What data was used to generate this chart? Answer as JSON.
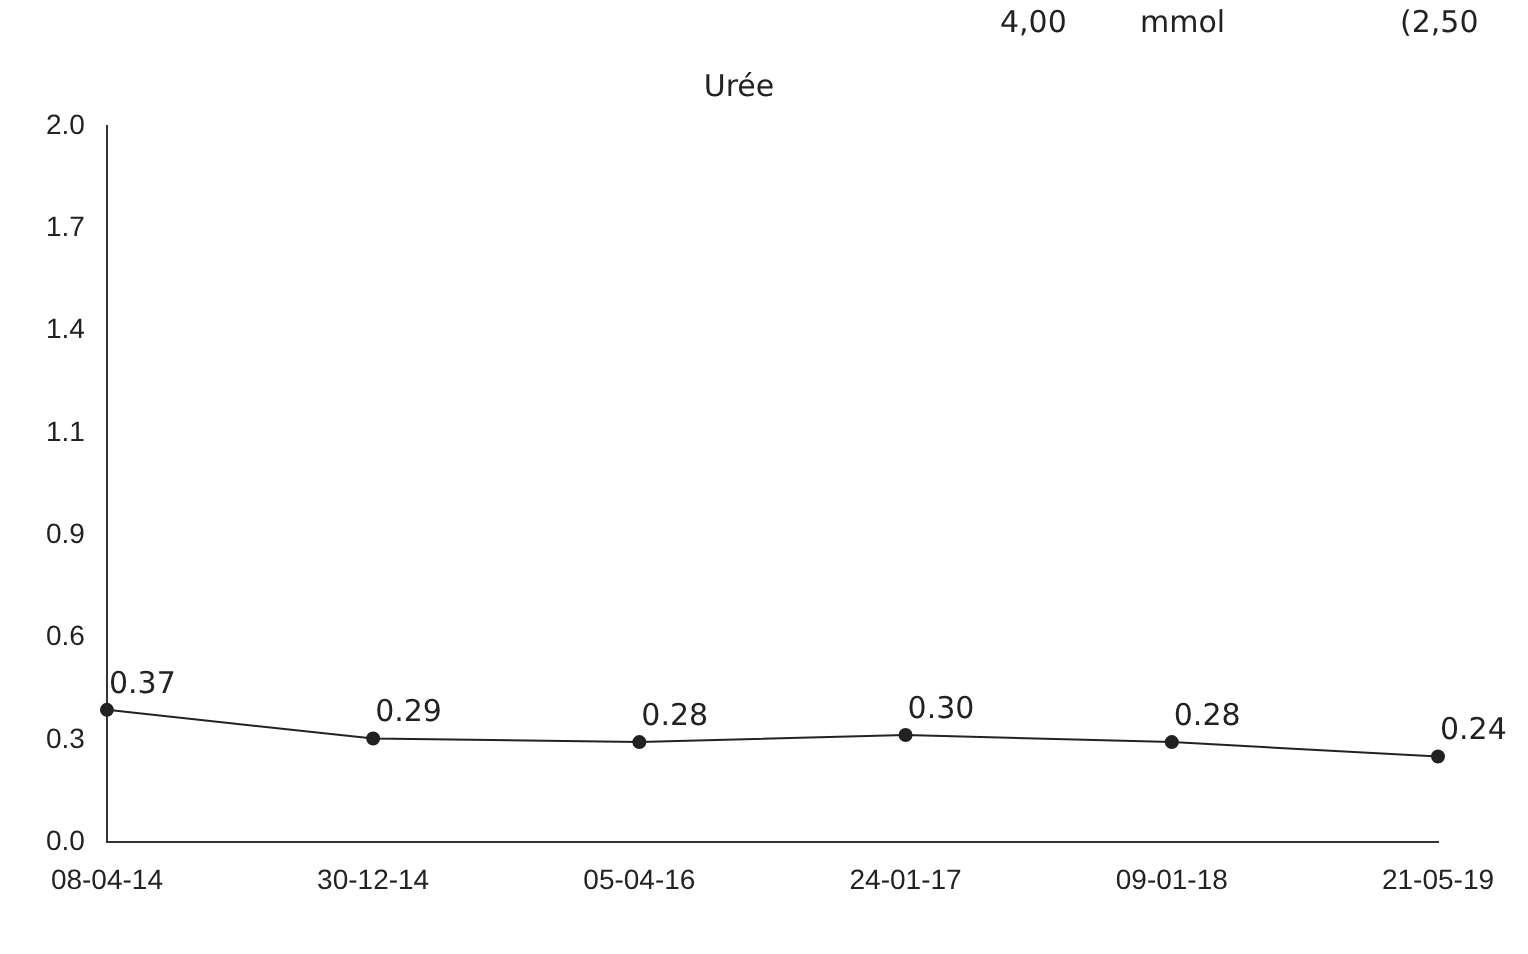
{
  "chart_data": {
    "type": "line",
    "title": "Urée",
    "annotations": [
      "4,00",
      "mmol",
      "(2,50"
    ],
    "categories": [
      "08-04-14",
      "30-12-14",
      "05-04-16",
      "24-01-17",
      "09-01-18",
      "21-05-19"
    ],
    "series": [
      {
        "color": "#222222",
        "values": [
          0.37,
          0.29,
          0.28,
          0.3,
          0.28,
          0.24
        ],
        "value_labels": [
          "0.37",
          "0.29",
          "0.28",
          "0.30",
          "0.28",
          "0.24"
        ]
      }
    ],
    "ylim": [
      0,
      2
    ],
    "yticks": [
      {
        "value": 0,
        "label": "0.0"
      },
      {
        "value": 0.2857,
        "label": "0.3"
      },
      {
        "value": 0.5714,
        "label": "0.6"
      },
      {
        "value": 0.8571,
        "label": "0.9"
      },
      {
        "value": 1.1429,
        "label": "1.1"
      },
      {
        "value": 1.4286,
        "label": "1.4"
      },
      {
        "value": 1.7143,
        "label": "1.7"
      },
      {
        "value": 2,
        "label": "2.0"
      }
    ],
    "grid": false,
    "legend": false,
    "marker": "circle",
    "line_style": "solid"
  }
}
